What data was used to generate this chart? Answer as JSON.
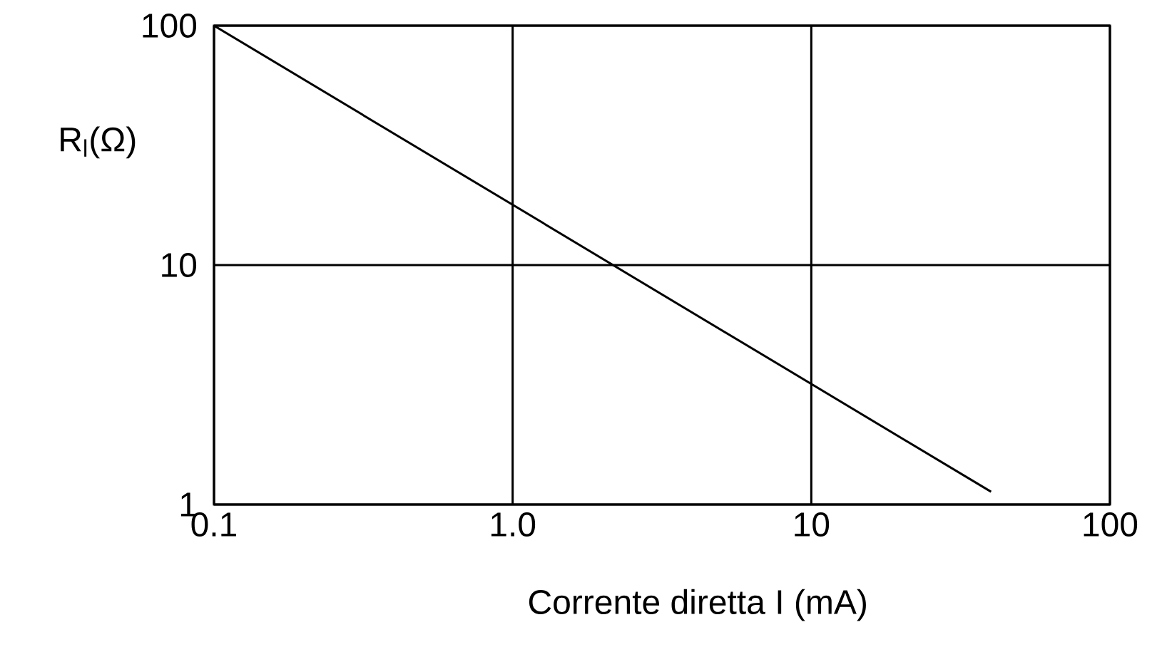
{
  "chart_data": {
    "type": "line",
    "xlabel": "Corrente diretta  I (mA)",
    "ylabel": "R$_{l}$(Ω)",
    "log": "xy",
    "grid": true,
    "xlim": [
      0.1,
      100
    ],
    "ylim": [
      1,
      100
    ],
    "xticks": [
      0.1,
      {
        "value": 1,
        "label": "1.0"
      },
      10,
      100
    ],
    "yticks": [
      1,
      10,
      100
    ],
    "series": [
      {
        "color": "#000000",
        "x": [
          0.1,
          40
        ],
        "values": [
          100,
          1.13
        ]
      }
    ]
  }
}
